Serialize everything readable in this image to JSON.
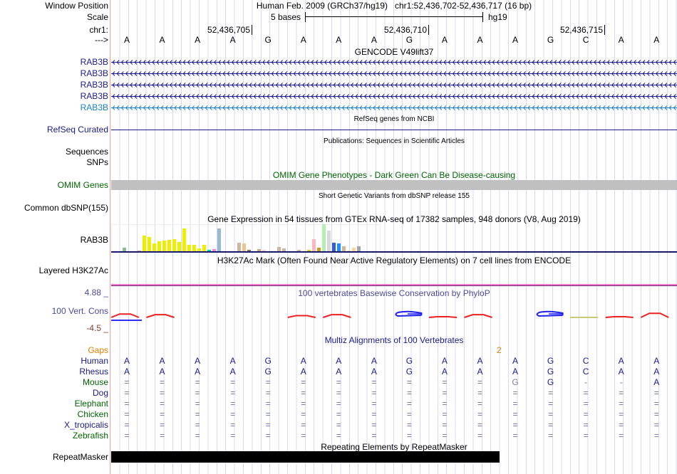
{
  "header": {
    "window_position_label": "Window Position",
    "window_position": "Human Feb. 2009 (GRCh37/hg19)   chr1:52,436,702-52,436,717 (16 bp)",
    "scale_label": "Scale",
    "scale_text": "5 bases",
    "scale_assembly": "hg19",
    "chrom_label": "chr1:",
    "ticks": [
      "52,436,705",
      "52,436,710",
      "52,436,715"
    ],
    "strand_label": "--->"
  },
  "sequence": [
    "A",
    "A",
    "A",
    "A",
    "G",
    "A",
    "A",
    "A",
    "G",
    "A",
    "A",
    "A",
    "G",
    "C",
    "A",
    "A"
  ],
  "gencode": {
    "title": "GENCODE V49lift37",
    "genes": [
      "RAB3B",
      "RAB3B",
      "RAB3B",
      "RAB3B",
      "RAB3B"
    ]
  },
  "refseq": {
    "title": "RefSeq genes from NCBI",
    "label": "RefSeq Curated"
  },
  "publications": {
    "title": "Publications: Sequences in Scientific Articles",
    "labels": [
      "Sequences",
      "SNPs"
    ]
  },
  "omim": {
    "title": "OMIM Gene Phenotypes - Dark Green Can Be Disease-causing",
    "label": "OMIM Genes"
  },
  "dbsnp": {
    "title": "Short Genetic Variants from dbSNP release 155",
    "label": "Common dbSNP(155)"
  },
  "gtex": {
    "title": "Gene Expression in 54 tissues from GTEx RNA-seq of 17382 samples, 948 donors (V8, Aug 2019)",
    "label": "RAB3B",
    "values": [
      0,
      0,
      5,
      0,
      0,
      0.6,
      21,
      19,
      11,
      14,
      15,
      16,
      17,
      13,
      31,
      9,
      9,
      4,
      9,
      2,
      3,
      31,
      0,
      0,
      0,
      12,
      11,
      2,
      0,
      3,
      1.5,
      0,
      0,
      6,
      4,
      0,
      0,
      2,
      0,
      2,
      17,
      5,
      37,
      28,
      12,
      11,
      7,
      1,
      5,
      7,
      0,
      0,
      0,
      0
    ],
    "colors": [
      "#ccc",
      "#ccc",
      "#8fbc8f",
      "#ccc",
      "#ccc",
      "#d2b48c",
      "#eeee00",
      "#eeee00",
      "#eeee00",
      "#eeee00",
      "#eeee00",
      "#eeee00",
      "#eeee00",
      "#eeee00",
      "#eeee00",
      "#eeee00",
      "#eeee00",
      "#eeee00",
      "#eeee00",
      "#00cccc",
      "#ee82ee",
      "#99bbcc",
      "#ccc",
      "#ccc",
      "#ccc",
      "#cdb79e",
      "#eec591",
      "#8b7355",
      "#ccc",
      "#cdaa7d",
      "#eed5d2",
      "#ccc",
      "#ccc",
      "#cdb79e",
      "#cdb79e",
      "#ccc",
      "#ccc",
      "#cdb79e",
      "#ccc",
      "#eec900",
      "#ffb6c1",
      "#cd9b1d",
      "#b4eeb4",
      "#d9d9d9",
      "#3a5fcd",
      "#1e90ff",
      "#cdb79e",
      "#eed5b7",
      "#ffd39b",
      "#a6a6a6",
      "#ccc",
      "#ccc",
      "#ccc",
      "#ccc"
    ]
  },
  "h3k27ac": {
    "title": "H3K27Ac Mark (Often Found Near Active Regulatory Elements) on 7 cell lines from ENCODE",
    "label": "Layered H3K27Ac"
  },
  "phylop": {
    "title": "100 vertebrates Basewise Conservation by PhyloP",
    "label": "100 Vert. Cons",
    "max": "4.88 _",
    "min": "-4.5 _",
    "values": [
      1.5,
      1.2,
      0,
      0,
      0,
      0.8,
      1.2,
      0,
      -1,
      0.3,
      1.2,
      0,
      -1,
      0.05,
      0.3,
      1.8
    ]
  },
  "multiz": {
    "title": "Multiz Alignments of 100 Vertebrates",
    "gaps_label": "Gaps",
    "gap_count": "2",
    "species": [
      {
        "name": "Human",
        "color": "navy",
        "bases": [
          "A",
          "A",
          "A",
          "A",
          "G",
          "A",
          "A",
          "A",
          "G",
          "A",
          "A",
          "A",
          "G",
          "C",
          "A",
          "A"
        ]
      },
      {
        "name": "Rhesus",
        "color": "navy",
        "bases": [
          "A",
          "A",
          "A",
          "A",
          "G",
          "A",
          "A",
          "A",
          "G",
          "A",
          "A",
          "A",
          "G",
          "C",
          "A",
          "A"
        ]
      },
      {
        "name": "Mouse",
        "color": "green",
        "bases": [
          "=",
          "=",
          "=",
          "=",
          "=",
          "=",
          "=",
          "=",
          "=",
          "=",
          "=",
          "G",
          "G",
          "-",
          "-",
          "A"
        ]
      },
      {
        "name": "Dog",
        "color": "navy",
        "bases": [
          "=",
          "=",
          "=",
          "=",
          "=",
          "=",
          "=",
          "=",
          "=",
          "=",
          "=",
          "=",
          "=",
          "=",
          "=",
          "="
        ]
      },
      {
        "name": "Elephant",
        "color": "green",
        "bases": [
          "=",
          "=",
          "=",
          "=",
          "=",
          "=",
          "=",
          "=",
          "=",
          "=",
          "=",
          "=",
          "=",
          "=",
          "=",
          "="
        ]
      },
      {
        "name": "Chicken",
        "color": "green",
        "bases": [
          "=",
          "=",
          "=",
          "=",
          "=",
          "=",
          "=",
          "=",
          "=",
          "=",
          "=",
          "=",
          "=",
          "=",
          "=",
          "="
        ]
      },
      {
        "name": "X_tropicalis",
        "color": "navy",
        "bases": [
          "=",
          "=",
          "=",
          "=",
          "=",
          "=",
          "=",
          "=",
          "=",
          "=",
          "=",
          "=",
          "=",
          "=",
          "=",
          "="
        ]
      },
      {
        "name": "Zebrafish",
        "color": "green",
        "bases": [
          "=",
          "=",
          "=",
          "=",
          "=",
          "=",
          "=",
          "=",
          "=",
          "=",
          "=",
          "=",
          "=",
          "=",
          "=",
          "="
        ]
      }
    ]
  },
  "repeatmasker": {
    "title": "Repeating Elements by RepeatMasker",
    "label": "RepeatMasker"
  }
}
